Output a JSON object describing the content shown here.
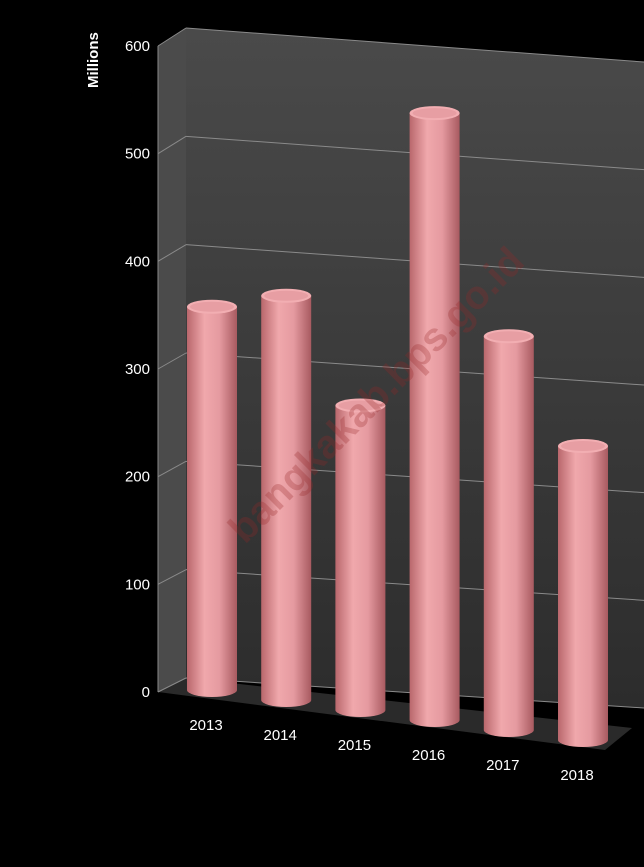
{
  "chart_data": {
    "type": "bar",
    "ylabel": "Millions",
    "categories": [
      "2013",
      "2014",
      "2015",
      "2016",
      "2017",
      "2018"
    ],
    "values": [
      365,
      385,
      290,
      578,
      375,
      280
    ],
    "ylim": [
      0,
      600
    ],
    "yticks": [
      "0",
      "100",
      "200",
      "300",
      "400",
      "500",
      "600"
    ],
    "bar_color": "#e5989c",
    "background": "#000000",
    "wall_color": "#3a3a3a",
    "grid": true
  },
  "watermark": "bangkakab.bps.go.id"
}
